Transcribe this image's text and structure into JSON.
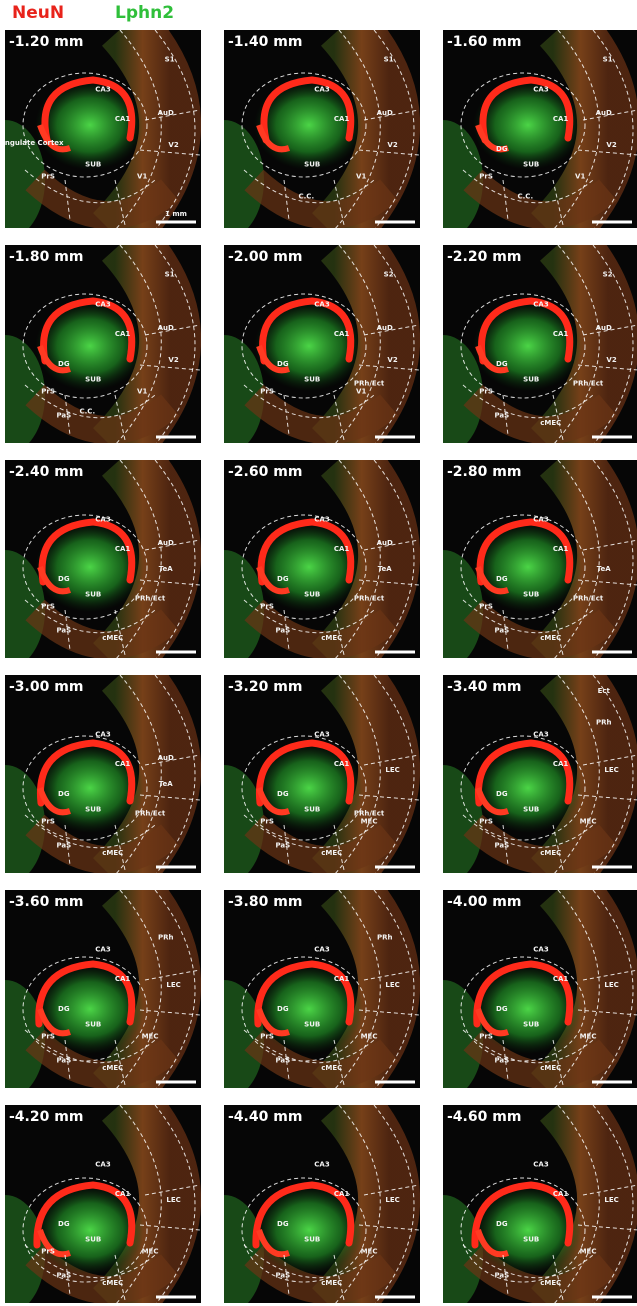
{
  "header": {
    "stains": [
      {
        "text": "NeuN",
        "color": "#e8231b"
      },
      {
        "text": "Lphn2",
        "color": "#2fbf3a"
      }
    ]
  },
  "panels": [
    {
      "label": "-1.20 mm",
      "regions": [
        "S1",
        "CA3",
        "CA1",
        "AuD",
        "V2",
        "V1",
        "SUB",
        "PrS",
        "Cingulate Cortex"
      ],
      "scale_label": "1 mm"
    },
    {
      "label": "-1.40 mm",
      "regions": [
        "S1",
        "CA3",
        "CA1",
        "AuD",
        "V2",
        "V1",
        "SUB",
        "C.C."
      ]
    },
    {
      "label": "-1.60 mm",
      "regions": [
        "S1",
        "DG",
        "CA3",
        "CA1",
        "AuD",
        "V2",
        "V1",
        "SUB",
        "PrS",
        "C.C."
      ]
    },
    {
      "label": "-1.80 mm",
      "regions": [
        "S1",
        "CA3",
        "DG",
        "CA1",
        "AuD",
        "V2",
        "V1",
        "SUB",
        "PrS",
        "PaS",
        "C.C."
      ]
    },
    {
      "label": "-2.00 mm",
      "regions": [
        "S2",
        "CA3",
        "DG",
        "CA1",
        "AuD",
        "V2",
        "V1",
        "SUB",
        "PrS",
        "PRh/Ect"
      ]
    },
    {
      "label": "-2.20 mm",
      "regions": [
        "S2",
        "CA3",
        "DG",
        "CA1",
        "AuD",
        "V2",
        "SUB",
        "PrS",
        "PaS",
        "PRh/Ect",
        "cMEC"
      ]
    },
    {
      "label": "-2.40 mm",
      "regions": [
        "AuD",
        "CA3",
        "DG",
        "CA1",
        "TeA",
        "SUB",
        "PrS",
        "PRh/Ect",
        "PaS",
        "cMEC"
      ]
    },
    {
      "label": "-2.60 mm",
      "regions": [
        "AuD",
        "CA3",
        "DG",
        "CA1",
        "TeA",
        "SUB",
        "PrS",
        "PRh/Ect",
        "PaS",
        "cMEC"
      ]
    },
    {
      "label": "-2.80 mm",
      "regions": [
        "TeA",
        "CA3",
        "DG",
        "CA1",
        "SUB",
        "PrS",
        "PRh/Ect",
        "PaS",
        "cMEC"
      ]
    },
    {
      "label": "-3.00 mm",
      "regions": [
        "AuD",
        "TeA",
        "CA3",
        "CA1",
        "DG",
        "PRh/Ect",
        "SUB",
        "PrS",
        "PaS",
        "cMEC"
      ]
    },
    {
      "label": "-3.20 mm",
      "regions": [
        "PRh/Ect",
        "CA3",
        "CA1",
        "LEC",
        "DG",
        "SUB",
        "MEC",
        "PrS",
        "PaS",
        "cMEC"
      ]
    },
    {
      "label": "-3.40 mm",
      "regions": [
        "Ect",
        "PRh",
        "CA3",
        "CA1",
        "LEC",
        "DG",
        "SUB",
        "MEC",
        "PrS",
        "PaS",
        "cMEC"
      ]
    },
    {
      "label": "-3.60 mm",
      "regions": [
        "PRh",
        "CA3",
        "CA1",
        "LEC",
        "DG",
        "SUB",
        "MEC",
        "PrS",
        "PaS",
        "cMEC"
      ]
    },
    {
      "label": "-3.80 mm",
      "regions": [
        "PRh",
        "CA3",
        "CA1",
        "LEC",
        "DG",
        "SUB",
        "MEC",
        "PrS",
        "PaS",
        "cMEC"
      ]
    },
    {
      "label": "-4.00 mm",
      "regions": [
        "CA3",
        "CA1",
        "LEC",
        "DG",
        "SUB",
        "MEC",
        "PrS",
        "PaS",
        "cMEC"
      ]
    },
    {
      "label": "-4.20 mm",
      "regions": [
        "CA3",
        "CA1",
        "LEC",
        "DG",
        "SUB",
        "PrS",
        "PaS",
        "MEC",
        "cMEC"
      ]
    },
    {
      "label": "-4.40 mm",
      "regions": [
        "CA3",
        "CA1",
        "LEC",
        "DG",
        "SUB",
        "PaS",
        "cMEC",
        "MEC"
      ]
    },
    {
      "label": "-4.60 mm",
      "regions": [
        "CA3",
        "CA1",
        "SUB",
        "DG",
        "LEC",
        "PaS",
        "cMEC",
        "MEC"
      ]
    }
  ]
}
